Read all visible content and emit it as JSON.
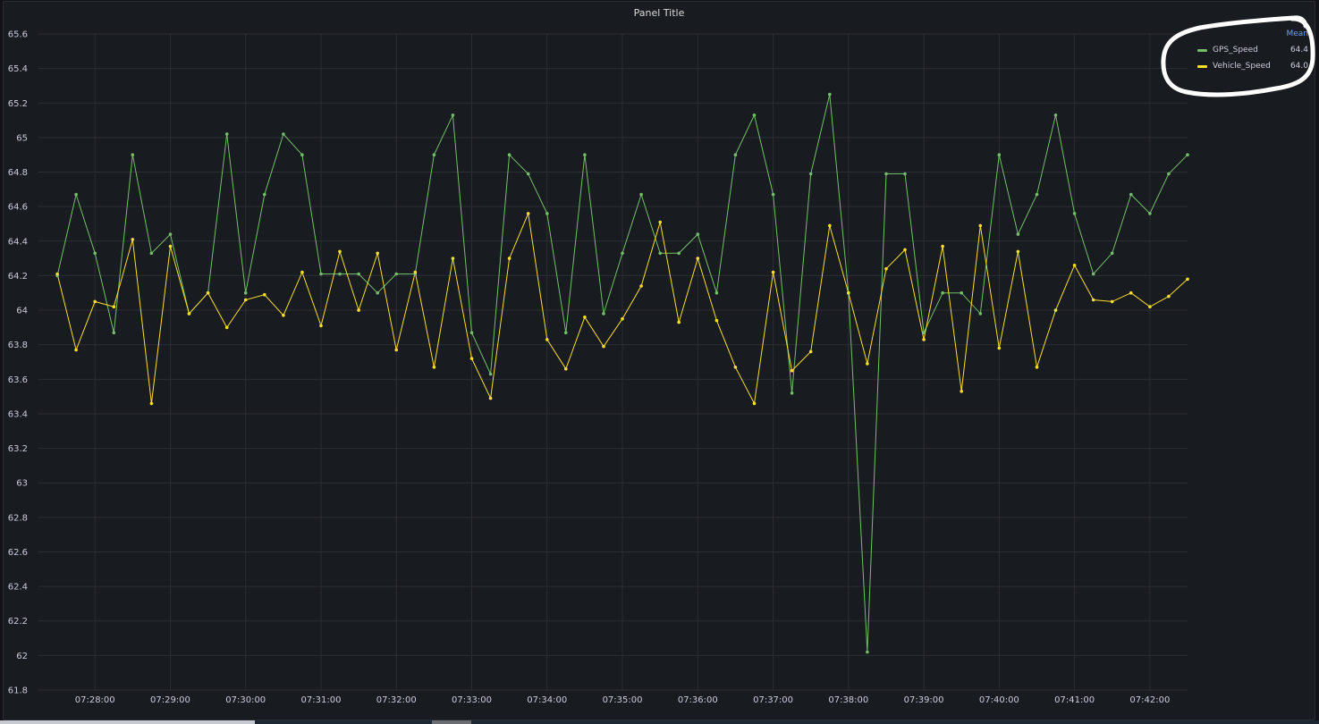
{
  "panel": {
    "title": "Panel Title"
  },
  "legend": {
    "header": "Mean",
    "items": [
      {
        "name": "GPS_Speed",
        "value": "64.4",
        "color": "#73bf69"
      },
      {
        "name": "Vehicle_Speed",
        "value": "64.0",
        "color": "#fade2a"
      }
    ]
  },
  "chart_data": {
    "type": "line",
    "title": "Panel Title",
    "xlabel": "",
    "ylabel": "",
    "ylim": [
      61.8,
      65.6
    ],
    "y_ticks": [
      "61.8",
      "62",
      "62.2",
      "62.4",
      "62.6",
      "62.8",
      "63",
      "63.2",
      "63.4",
      "63.6",
      "63.8",
      "64",
      "64.2",
      "64.4",
      "64.6",
      "64.8",
      "65",
      "65.2",
      "65.4",
      "65.6"
    ],
    "x_ticks": [
      "07:28:00",
      "07:29:00",
      "07:30:00",
      "07:31:00",
      "07:32:00",
      "07:33:00",
      "07:34:00",
      "07:35:00",
      "07:36:00",
      "07:37:00",
      "07:38:00",
      "07:39:00",
      "07:40:00",
      "07:41:00",
      "07:42:00"
    ],
    "x_start": "07:27:15",
    "x_end": "07:42:30",
    "grid": true,
    "legend_position": "top-right",
    "series": [
      {
        "name": "GPS_Speed",
        "color": "#73bf69",
        "points": [
          [
            "07:27:30",
            64.2
          ],
          [
            "07:27:45",
            64.67
          ],
          [
            "07:28:00",
            64.33
          ],
          [
            "07:28:15",
            63.87
          ],
          [
            "07:28:30",
            64.9
          ],
          [
            "07:28:45",
            64.33
          ],
          [
            "07:29:00",
            64.44
          ],
          [
            "07:29:15",
            63.98
          ],
          [
            "07:29:30",
            64.1
          ],
          [
            "07:29:45",
            65.02
          ],
          [
            "07:30:00",
            64.1
          ],
          [
            "07:30:15",
            64.67
          ],
          [
            "07:30:30",
            65.02
          ],
          [
            "07:30:45",
            64.9
          ],
          [
            "07:31:00",
            64.21
          ],
          [
            "07:31:15",
            64.21
          ],
          [
            "07:31:30",
            64.21
          ],
          [
            "07:31:45",
            64.1
          ],
          [
            "07:32:00",
            64.21
          ],
          [
            "07:32:15",
            64.21
          ],
          [
            "07:32:30",
            64.9
          ],
          [
            "07:32:45",
            65.13
          ],
          [
            "07:33:00",
            63.87
          ],
          [
            "07:33:15",
            63.63
          ],
          [
            "07:33:30",
            64.9
          ],
          [
            "07:33:45",
            64.79
          ],
          [
            "07:34:00",
            64.56
          ],
          [
            "07:34:15",
            63.87
          ],
          [
            "07:34:30",
            64.9
          ],
          [
            "07:34:45",
            63.98
          ],
          [
            "07:35:00",
            64.33
          ],
          [
            "07:35:15",
            64.67
          ],
          [
            "07:35:30",
            64.33
          ],
          [
            "07:35:45",
            64.33
          ],
          [
            "07:36:00",
            64.44
          ],
          [
            "07:36:15",
            64.1
          ],
          [
            "07:36:30",
            64.9
          ],
          [
            "07:36:45",
            65.13
          ],
          [
            "07:37:00",
            64.67
          ],
          [
            "07:37:15",
            63.52
          ],
          [
            "07:37:30",
            64.79
          ],
          [
            "07:37:45",
            65.25
          ],
          [
            "07:38:00",
            64.1
          ],
          [
            "07:38:15",
            62.02
          ],
          [
            "07:38:30",
            64.79
          ],
          [
            "07:38:45",
            64.79
          ],
          [
            "07:39:00",
            63.87
          ],
          [
            "07:39:15",
            64.1
          ],
          [
            "07:39:30",
            64.1
          ],
          [
            "07:39:45",
            63.98
          ],
          [
            "07:40:00",
            64.9
          ],
          [
            "07:40:15",
            64.44
          ],
          [
            "07:40:30",
            64.67
          ],
          [
            "07:40:45",
            65.13
          ],
          [
            "07:41:00",
            64.56
          ],
          [
            "07:41:15",
            64.21
          ],
          [
            "07:41:30",
            64.33
          ],
          [
            "07:41:45",
            64.67
          ],
          [
            "07:42:00",
            64.56
          ],
          [
            "07:42:15",
            64.79
          ],
          [
            "07:42:30",
            64.9
          ]
        ]
      },
      {
        "name": "Vehicle_Speed",
        "color": "#fade2a",
        "points": [
          [
            "07:27:30",
            64.21
          ],
          [
            "07:27:45",
            63.77
          ],
          [
            "07:28:00",
            64.05
          ],
          [
            "07:28:15",
            64.02
          ],
          [
            "07:28:30",
            64.41
          ],
          [
            "07:28:45",
            63.46
          ],
          [
            "07:29:00",
            64.37
          ],
          [
            "07:29:15",
            63.98
          ],
          [
            "07:29:30",
            64.1
          ],
          [
            "07:29:45",
            63.9
          ],
          [
            "07:30:00",
            64.06
          ],
          [
            "07:30:15",
            64.09
          ],
          [
            "07:30:30",
            63.97
          ],
          [
            "07:30:45",
            64.22
          ],
          [
            "07:31:00",
            63.91
          ],
          [
            "07:31:15",
            64.34
          ],
          [
            "07:31:30",
            64.0
          ],
          [
            "07:31:45",
            64.33
          ],
          [
            "07:32:00",
            63.77
          ],
          [
            "07:32:15",
            64.22
          ],
          [
            "07:32:30",
            63.67
          ],
          [
            "07:32:45",
            64.3
          ],
          [
            "07:33:00",
            63.72
          ],
          [
            "07:33:15",
            63.49
          ],
          [
            "07:33:30",
            64.3
          ],
          [
            "07:33:45",
            64.56
          ],
          [
            "07:34:00",
            63.83
          ],
          [
            "07:34:15",
            63.66
          ],
          [
            "07:34:30",
            63.96
          ],
          [
            "07:34:45",
            63.79
          ],
          [
            "07:35:00",
            63.95
          ],
          [
            "07:35:15",
            64.14
          ],
          [
            "07:35:30",
            64.51
          ],
          [
            "07:35:45",
            63.93
          ],
          [
            "07:36:00",
            64.3
          ],
          [
            "07:36:15",
            63.94
          ],
          [
            "07:36:30",
            63.67
          ],
          [
            "07:36:45",
            63.46
          ],
          [
            "07:37:00",
            64.22
          ],
          [
            "07:37:15",
            63.65
          ],
          [
            "07:37:30",
            63.76
          ],
          [
            "07:37:45",
            64.49
          ],
          [
            "07:38:00",
            64.1
          ],
          [
            "07:38:15",
            63.69
          ],
          [
            "07:38:30",
            64.24
          ],
          [
            "07:38:45",
            64.35
          ],
          [
            "07:39:00",
            63.83
          ],
          [
            "07:39:15",
            64.37
          ],
          [
            "07:39:30",
            63.53
          ],
          [
            "07:39:45",
            64.49
          ],
          [
            "07:40:00",
            63.78
          ],
          [
            "07:40:15",
            64.34
          ],
          [
            "07:40:30",
            63.67
          ],
          [
            "07:40:45",
            64.0
          ],
          [
            "07:41:00",
            64.26
          ],
          [
            "07:41:15",
            64.06
          ],
          [
            "07:41:30",
            64.05
          ],
          [
            "07:41:45",
            64.1
          ],
          [
            "07:42:00",
            64.02
          ],
          [
            "07:42:15",
            64.08
          ],
          [
            "07:42:30",
            64.18
          ]
        ]
      }
    ]
  }
}
